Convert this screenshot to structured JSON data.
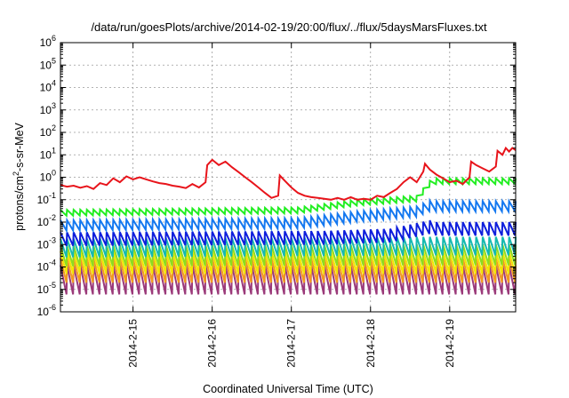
{
  "chart_data": {
    "type": "line",
    "title": "/data/run/goesPlots/archive/2014-02-19/20:00/flux/../flux/5daysMarsFluxes.txt",
    "xlabel": "Coordinated Universal Time (UTC)",
    "ylabel": {
      "prefix": "protons/cm",
      "sup": "2",
      "suffix": "-s-sr-MeV"
    },
    "yscale": "log",
    "ylim": [
      1e-06,
      1000000.0
    ],
    "xlim": [
      "2014-02-14T02:00",
      "2014-02-19T20:00"
    ],
    "grid": true,
    "legend": "none",
    "y_ticks": [
      {
        "value": 1e-06,
        "base": "10",
        "exp": "-6"
      },
      {
        "value": 1e-05,
        "base": "10",
        "exp": "-5"
      },
      {
        "value": 0.0001,
        "base": "10",
        "exp": "-4"
      },
      {
        "value": 0.001,
        "base": "10",
        "exp": "-3"
      },
      {
        "value": 0.01,
        "base": "10",
        "exp": "-2"
      },
      {
        "value": 0.1,
        "base": "10",
        "exp": "-1"
      },
      {
        "value": 1.0,
        "base": "10",
        "exp": "0"
      },
      {
        "value": 10.0,
        "base": "10",
        "exp": "1"
      },
      {
        "value": 100.0,
        "base": "10",
        "exp": "2"
      },
      {
        "value": 1000.0,
        "base": "10",
        "exp": "3"
      },
      {
        "value": 10000.0,
        "base": "10",
        "exp": "4"
      },
      {
        "value": 100000.0,
        "base": "10",
        "exp": "5"
      },
      {
        "value": 1000000.0,
        "base": "10",
        "exp": "6"
      }
    ],
    "x_ticks": [
      {
        "value": "2014-02-15T00:00",
        "label": "2014-2-15"
      },
      {
        "value": "2014-02-16T00:00",
        "label": "2014-2-16"
      },
      {
        "value": "2014-02-17T00:00",
        "label": "2014-2-17"
      },
      {
        "value": "2014-02-18T00:00",
        "label": "2014-2-18"
      },
      {
        "value": "2014-02-19T00:00",
        "label": "2014-2-19"
      }
    ],
    "series": [
      {
        "color": "#e8141b",
        "points": [
          [
            "2014-02-14T02:00",
            0.45
          ],
          [
            "2014-02-14T04:00",
            0.38
          ],
          [
            "2014-02-14T06:00",
            0.42
          ],
          [
            "2014-02-14T08:00",
            0.34
          ],
          [
            "2014-02-14T10:00",
            0.4
          ],
          [
            "2014-02-14T12:00",
            0.3
          ],
          [
            "2014-02-14T14:00",
            0.55
          ],
          [
            "2014-02-14T16:00",
            0.45
          ],
          [
            "2014-02-14T18:00",
            0.9
          ],
          [
            "2014-02-14T20:00",
            0.6
          ],
          [
            "2014-02-14T22:00",
            1.1
          ],
          [
            "2014-02-15T00:00",
            0.8
          ],
          [
            "2014-02-15T02:00",
            1.0
          ],
          [
            "2014-02-15T04:00",
            0.8
          ],
          [
            "2014-02-15T06:00",
            0.65
          ],
          [
            "2014-02-15T08:00",
            0.55
          ],
          [
            "2014-02-15T10:00",
            0.5
          ],
          [
            "2014-02-15T12:00",
            0.42
          ],
          [
            "2014-02-15T14:00",
            0.38
          ],
          [
            "2014-02-15T16:00",
            0.33
          ],
          [
            "2014-02-15T18:00",
            0.5
          ],
          [
            "2014-02-15T20:00",
            0.35
          ],
          [
            "2014-02-15T22:00",
            0.6
          ],
          [
            "2014-02-15T22:30",
            3.5
          ],
          [
            "2014-02-16T00:00",
            6.0
          ],
          [
            "2014-02-16T02:00",
            3.5
          ],
          [
            "2014-02-16T04:00",
            5.0
          ],
          [
            "2014-02-16T06:00",
            2.8
          ],
          [
            "2014-02-16T08:00",
            1.7
          ],
          [
            "2014-02-16T10:00",
            1.0
          ],
          [
            "2014-02-16T12:00",
            0.6
          ],
          [
            "2014-02-16T14:00",
            0.35
          ],
          [
            "2014-02-16T16:00",
            0.2
          ],
          [
            "2014-02-16T18:00",
            0.12
          ],
          [
            "2014-02-16T20:00",
            0.15
          ],
          [
            "2014-02-16T20:30",
            1.2
          ],
          [
            "2014-02-16T22:00",
            0.7
          ],
          [
            "2014-02-17T00:00",
            0.35
          ],
          [
            "2014-02-17T02:00",
            0.2
          ],
          [
            "2014-02-17T04:00",
            0.15
          ],
          [
            "2014-02-17T06:00",
            0.13
          ],
          [
            "2014-02-17T08:00",
            0.12
          ],
          [
            "2014-02-17T10:00",
            0.11
          ],
          [
            "2014-02-17T12:00",
            0.1
          ],
          [
            "2014-02-17T14:00",
            0.12
          ],
          [
            "2014-02-17T16:00",
            0.1
          ],
          [
            "2014-02-17T18:00",
            0.13
          ],
          [
            "2014-02-17T20:00",
            0.1
          ],
          [
            "2014-02-17T22:00",
            0.11
          ],
          [
            "2014-02-18T00:00",
            0.1
          ],
          [
            "2014-02-18T02:00",
            0.15
          ],
          [
            "2014-02-18T04:00",
            0.13
          ],
          [
            "2014-02-18T06:00",
            0.2
          ],
          [
            "2014-02-18T08:00",
            0.3
          ],
          [
            "2014-02-18T10:00",
            0.6
          ],
          [
            "2014-02-18T12:00",
            1.0
          ],
          [
            "2014-02-18T14:00",
            0.6
          ],
          [
            "2014-02-18T16:00",
            1.8
          ],
          [
            "2014-02-18T16:30",
            4.0
          ],
          [
            "2014-02-18T18:00",
            2.2
          ],
          [
            "2014-02-18T20:00",
            1.3
          ],
          [
            "2014-02-18T22:00",
            0.9
          ],
          [
            "2014-02-19T00:00",
            0.6
          ],
          [
            "2014-02-19T02:00",
            0.7
          ],
          [
            "2014-02-19T04:00",
            0.5
          ],
          [
            "2014-02-19T06:00",
            1.0
          ],
          [
            "2014-02-19T06:30",
            5.0
          ],
          [
            "2014-02-19T08:00",
            3.5
          ],
          [
            "2014-02-19T10:00",
            2.5
          ],
          [
            "2014-02-19T12:00",
            1.8
          ],
          [
            "2014-02-19T14:00",
            3.0
          ],
          [
            "2014-02-19T14:30",
            15
          ],
          [
            "2014-02-19T16:00",
            10
          ],
          [
            "2014-02-19T17:00",
            20
          ],
          [
            "2014-02-19T18:00",
            14
          ],
          [
            "2014-02-19T19:00",
            20
          ],
          [
            "2014-02-19T20:00",
            16
          ]
        ]
      },
      {
        "color": "#22ee22",
        "pattern": {
          "period_h": 2,
          "high": [
            [
              0,
              0.035
            ],
            [
              72,
              0.045
            ],
            [
              90,
              0.1
            ],
            [
              108,
              0.15
            ],
            [
              112,
              0.7
            ],
            [
              114,
              0.9
            ]
          ],
          "low_ratio": 0.55
        }
      },
      {
        "color": "#1478f0",
        "pattern": {
          "period_h": 2,
          "high": [
            [
              0,
              0.012
            ],
            [
              72,
              0.015
            ],
            [
              90,
              0.03
            ],
            [
              108,
              0.05
            ],
            [
              112,
              0.09
            ],
            [
              114,
              0.085
            ]
          ],
          "low_ratio": 0.35
        }
      },
      {
        "color": "#0e1edc",
        "pattern": {
          "period_h": 2,
          "high": [
            [
              0,
              0.0035
            ],
            [
              80,
              0.004
            ],
            [
              100,
              0.005
            ],
            [
              112,
              0.012
            ],
            [
              114,
              0.01
            ]
          ],
          "low_ratio": 0.25
        }
      },
      {
        "color": "#15b9b0",
        "pattern": {
          "period_h": 2,
          "high": [
            [
              0,
              0.0018
            ],
            [
              114,
              0.0022
            ]
          ],
          "low_ratio": 0.15
        }
      },
      {
        "color": "#8ddc1e",
        "pattern": {
          "period_h": 2,
          "high": [
            [
              0,
              0.0009
            ],
            [
              114,
              0.001
            ]
          ],
          "low_ratio": 0.12
        }
      },
      {
        "color": "#f2e600",
        "pattern": {
          "period_h": 2,
          "high": [
            [
              0,
              0.0005
            ],
            [
              114,
              0.0005
            ]
          ],
          "low_ratio": 0.1
        }
      },
      {
        "color": "#f29a1e",
        "pattern": {
          "period_h": 2,
          "high": [
            [
              0,
              0.00025
            ],
            [
              114,
              0.00025
            ]
          ],
          "low_ratio": 0.08
        }
      },
      {
        "color": "#9b3a7a",
        "pattern": {
          "period_h": 2,
          "high": [
            [
              0,
              0.00012
            ],
            [
              114,
              0.00012
            ]
          ],
          "low_ratio": 0.05
        }
      }
    ]
  }
}
